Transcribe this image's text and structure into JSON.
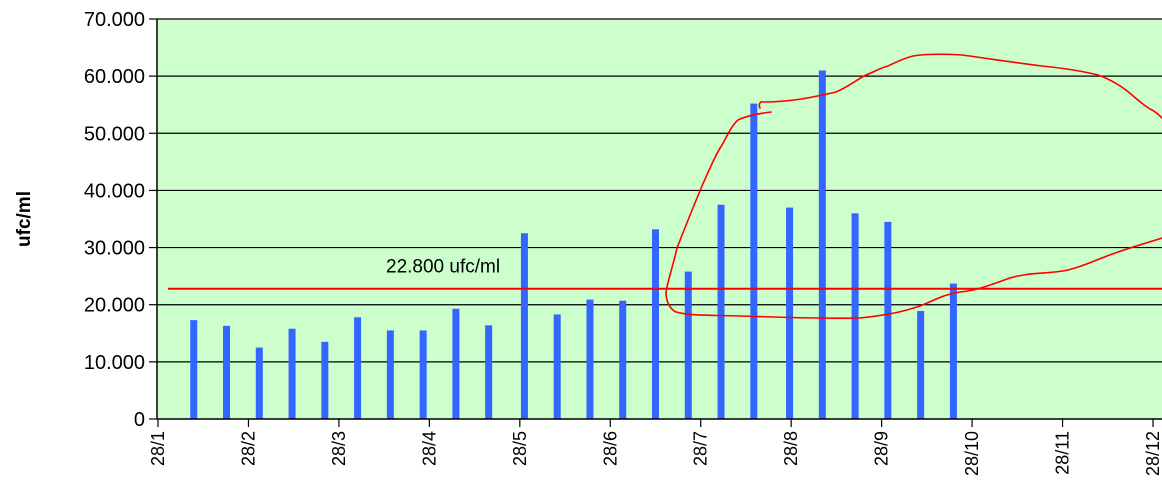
{
  "chart_data": {
    "type": "bar",
    "title": "",
    "xlabel": "",
    "ylabel": "ufc/ml",
    "ylim": [
      0,
      70000
    ],
    "yticks": [
      0,
      10000,
      20000,
      30000,
      40000,
      50000,
      60000,
      70000
    ],
    "ytick_labels": [
      "0",
      "10.000",
      "20.000",
      "30.000",
      "40.000",
      "50.000",
      "60.000",
      "70.000"
    ],
    "xtick_labels": [
      "28/1",
      "28/2",
      "28/3",
      "28/4",
      "28/5",
      "28/6",
      "28/7",
      "28/8",
      "28/9",
      "28/10",
      "28/11",
      "28/12"
    ],
    "x_domain": [
      "2023-01-28",
      "2023-12-28"
    ],
    "bars": [
      {
        "date": "2023-02-09",
        "value": 17300
      },
      {
        "date": "2023-02-20",
        "value": 16300
      },
      {
        "date": "2023-03-03",
        "value": 12500
      },
      {
        "date": "2023-03-14",
        "value": 15800
      },
      {
        "date": "2023-03-25",
        "value": 13500
      },
      {
        "date": "2023-04-05",
        "value": 17800
      },
      {
        "date": "2023-04-16",
        "value": 15500
      },
      {
        "date": "2023-04-27",
        "value": 15500
      },
      {
        "date": "2023-05-08",
        "value": 19300
      },
      {
        "date": "2023-05-19",
        "value": 16400
      },
      {
        "date": "2023-05-31",
        "value": 32500
      },
      {
        "date": "2023-06-11",
        "value": 18300
      },
      {
        "date": "2023-06-22",
        "value": 20900
      },
      {
        "date": "2023-07-03",
        "value": 20700
      },
      {
        "date": "2023-07-14",
        "value": 33200
      },
      {
        "date": "2023-07-25",
        "value": 25800
      },
      {
        "date": "2023-08-05",
        "value": 37500
      },
      {
        "date": "2023-08-16",
        "value": 55200
      },
      {
        "date": "2023-08-28",
        "value": 37000
      },
      {
        "date": "2023-09-08",
        "value": 61000
      },
      {
        "date": "2023-09-19",
        "value": 36000
      },
      {
        "date": "2023-09-30",
        "value": 34500
      },
      {
        "date": "2023-10-11",
        "value": 18900
      },
      {
        "date": "2023-10-22",
        "value": 23700
      }
    ],
    "threshold": {
      "value": 22800,
      "label": "22.800 ufc/ml"
    },
    "grid": true,
    "colors": {
      "plot_background": "#ccffcc",
      "bar": "#3366ff",
      "threshold_line": "#ff0000",
      "annotation_stroke": "#ff0000",
      "gridline": "#000000"
    },
    "annotation": "hand-drawn red freehand loop outlining the period of elevated counts (June through December)"
  }
}
